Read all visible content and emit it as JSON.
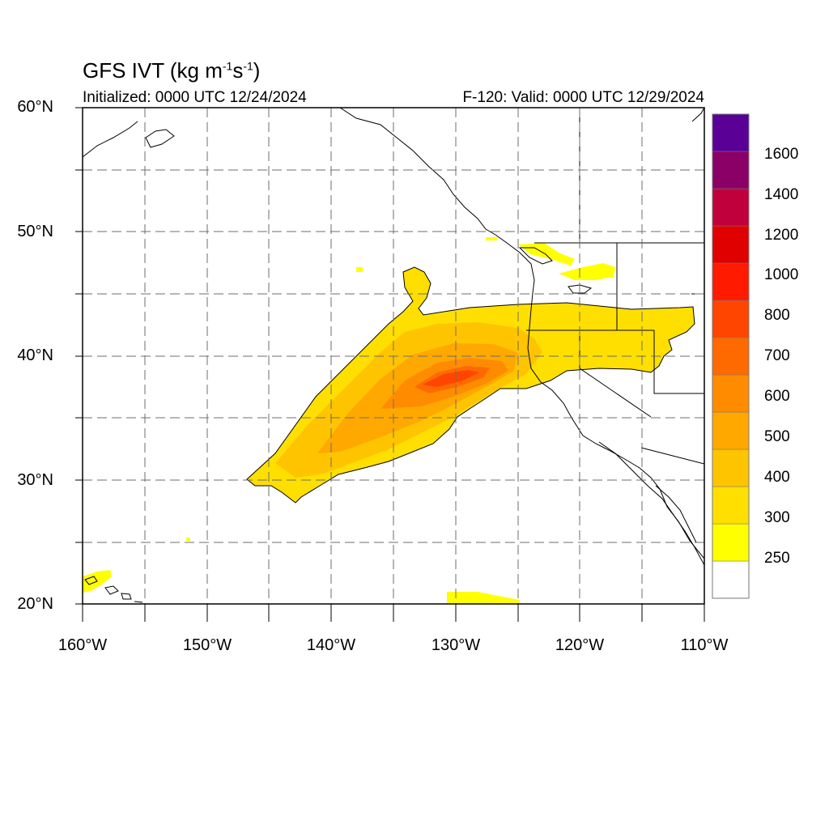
{
  "title": {
    "main": "GFS IVT (kg m",
    "unit_sup1": "-1",
    "unit_mid": "s",
    "unit_sup2": "-1",
    "unit_close": ")"
  },
  "subtitle": {
    "initialized": "Initialized: 0000 UTC 12/24/2024",
    "valid": "F-120: Valid: 0000 UTC 12/29/2024"
  },
  "map": {
    "lon_range": [
      -160,
      -110
    ],
    "lat_range": [
      20,
      60
    ],
    "lat_labels": [
      "60°N",
      "50°N",
      "40°N",
      "30°N",
      "20°N"
    ],
    "lon_labels": [
      "160°W",
      "150°W",
      "140°W",
      "130°W",
      "120°W",
      "110°W"
    ],
    "gridlines": "dashed",
    "field": "Integrated Vapor Transport"
  },
  "colorbar": {
    "labels": [
      "1600",
      "1400",
      "1200",
      "1000",
      "800",
      "700",
      "600",
      "500",
      "400",
      "300",
      "250"
    ],
    "colors": [
      "#ffffff",
      "#ffff00",
      "#ffdf00",
      "#ffc400",
      "#ffa800",
      "#ff8c00",
      "#ff6a00",
      "#ff4500",
      "#ff1a00",
      "#e00000",
      "#c0003c",
      "#8b0066",
      "#5a0096"
    ]
  }
}
